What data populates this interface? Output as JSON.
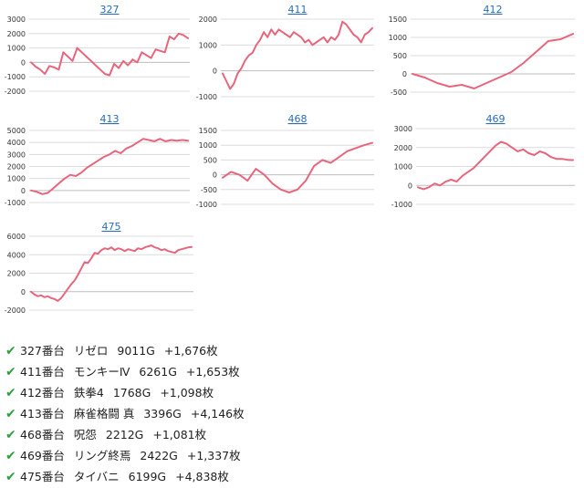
{
  "chart_data": [
    {
      "type": "line",
      "title": "327",
      "yticks": [
        "3000",
        "2000",
        "1000",
        "0",
        "-1000",
        "-2000"
      ],
      "ylim": [
        -2000,
        3000
      ],
      "x": [
        0,
        1,
        2,
        3,
        4,
        5,
        6,
        7,
        8,
        9,
        10,
        11,
        12,
        13,
        14,
        15,
        16,
        17,
        18,
        19,
        20,
        21,
        22,
        23,
        24,
        25,
        26,
        27,
        28,
        29,
        30,
        31,
        32,
        33,
        34
      ],
      "values": [
        0,
        -300,
        -500,
        -800,
        -250,
        -350,
        -500,
        700,
        400,
        100,
        1000,
        700,
        400,
        100,
        -200,
        -500,
        -800,
        -900,
        -100,
        -400,
        100,
        -200,
        200,
        0,
        700,
        500,
        300,
        900,
        800,
        700,
        1800,
        1600,
        2000,
        1900,
        1676
      ],
      "color": "#e8667d"
    },
    {
      "type": "line",
      "title": "411",
      "yticks": [
        "2000",
        "1000",
        "0",
        "-1000"
      ],
      "ylim": [
        -1000,
        2000
      ],
      "x": [
        0,
        1,
        2,
        3,
        4,
        5,
        6,
        7,
        8,
        9,
        10,
        11,
        12,
        13,
        14,
        15,
        16,
        17,
        18,
        19,
        20,
        21,
        22,
        23,
        24,
        25,
        26,
        27,
        28,
        29,
        30,
        31,
        32,
        33,
        34,
        35,
        36,
        37,
        38,
        39,
        40
      ],
      "values": [
        -100,
        -400,
        -700,
        -500,
        -100,
        100,
        400,
        600,
        700,
        1000,
        1200,
        1500,
        1300,
        1600,
        1400,
        1600,
        1500,
        1400,
        1300,
        1500,
        1400,
        1300,
        1100,
        1200,
        1000,
        1100,
        1200,
        1300,
        1100,
        1300,
        1200,
        1400,
        1900,
        1800,
        1600,
        1400,
        1300,
        1100,
        1400,
        1500,
        1653
      ],
      "color": "#e8667d"
    },
    {
      "type": "line",
      "title": "412",
      "yticks": [
        "1500",
        "1000",
        "500",
        "0",
        "-500"
      ],
      "ylim": [
        -500,
        1500
      ],
      "x": [
        0,
        1,
        2,
        3,
        4,
        5,
        6,
        7,
        8,
        9,
        10,
        11,
        12,
        13
      ],
      "values": [
        0,
        -100,
        -250,
        -350,
        -300,
        -400,
        -250,
        -100,
        50,
        300,
        600,
        900,
        950,
        1098
      ],
      "color": "#e8667d"
    },
    {
      "type": "line",
      "title": "413",
      "yticks": [
        "5000",
        "4000",
        "3000",
        "2000",
        "1000",
        "0",
        "-1000"
      ],
      "ylim": [
        -1000,
        5000
      ],
      "x": [
        0,
        1,
        2,
        3,
        4,
        5,
        6,
        7,
        8,
        9,
        10,
        11,
        12,
        13,
        14,
        15,
        16,
        17,
        18,
        19,
        20,
        21,
        22,
        23,
        24,
        25,
        26,
        27,
        28
      ],
      "values": [
        0,
        -100,
        -300,
        -200,
        200,
        600,
        1000,
        1300,
        1200,
        1500,
        1900,
        2200,
        2500,
        2800,
        3000,
        3300,
        3100,
        3500,
        3700,
        4000,
        4300,
        4200,
        4100,
        4300,
        4100,
        4200,
        4146,
        4200,
        4146
      ],
      "color": "#e8667d"
    },
    {
      "type": "line",
      "title": "468",
      "yticks": [
        "1500",
        "1000",
        "500",
        "0",
        "-500",
        "-1000"
      ],
      "ylim": [
        -1000,
        1500
      ],
      "x": [
        0,
        1,
        2,
        3,
        4,
        5,
        6,
        7,
        8,
        9,
        10,
        11,
        12,
        13,
        14,
        15,
        16,
        17,
        18
      ],
      "values": [
        -100,
        100,
        0,
        -200,
        200,
        0,
        -300,
        -500,
        -600,
        -500,
        -200,
        300,
        500,
        400,
        600,
        800,
        900,
        1000,
        1081
      ],
      "color": "#e8667d"
    },
    {
      "type": "line",
      "title": "469",
      "yticks": [
        "3000",
        "2000",
        "1000",
        "0",
        "-1000"
      ],
      "ylim": [
        -1000,
        3000
      ],
      "x": [
        0,
        1,
        2,
        3,
        4,
        5,
        6,
        7,
        8,
        9,
        10,
        11,
        12,
        13,
        14,
        15,
        16,
        17,
        18,
        19,
        20,
        21,
        22,
        23,
        24,
        25,
        26,
        27,
        28
      ],
      "values": [
        -100,
        -200,
        -100,
        100,
        0,
        200,
        300,
        200,
        500,
        700,
        900,
        1200,
        1500,
        1800,
        2100,
        2300,
        2200,
        2000,
        1800,
        1900,
        1700,
        1600,
        1800,
        1700,
        1500,
        1400,
        1400,
        1350,
        1337
      ],
      "color": "#e8667d"
    },
    {
      "type": "line",
      "title": "475",
      "yticks": [
        "6000",
        "4000",
        "2000",
        "0",
        "-2000"
      ],
      "ylim": [
        -2000,
        6000
      ],
      "x": [
        0,
        1,
        2,
        3,
        4,
        5,
        6,
        7,
        8,
        9,
        10,
        11,
        12,
        13,
        14,
        15,
        16,
        17,
        18,
        19,
        20,
        21,
        22,
        23,
        24,
        25,
        26,
        27,
        28,
        29,
        30,
        31,
        32,
        33,
        34,
        35,
        36,
        37,
        38,
        39,
        40,
        41,
        42,
        43,
        44,
        45,
        46,
        47,
        48
      ],
      "values": [
        0,
        -300,
        -500,
        -400,
        -600,
        -500,
        -700,
        -800,
        -1000,
        -700,
        -200,
        300,
        800,
        1200,
        1800,
        2500,
        3200,
        3100,
        3600,
        4200,
        4100,
        4500,
        4700,
        4600,
        4800,
        4500,
        4700,
        4600,
        4400,
        4600,
        4500,
        4400,
        4700,
        4600,
        4800,
        4900,
        5000,
        4800,
        4700,
        4500,
        4600,
        4400,
        4300,
        4200,
        4500,
        4600,
        4700,
        4800,
        4838
      ],
      "color": "#e8667d"
    }
  ],
  "summary": [
    {
      "machine": "327番台",
      "name": "リゼロ",
      "games": "9011G",
      "result": "+1,676枚"
    },
    {
      "machine": "411番台",
      "name": "モンキーⅣ",
      "games": "6261G",
      "result": "+1,653枚"
    },
    {
      "machine": "412番台",
      "name": "鉄拳4",
      "games": "1768G",
      "result": "+1,098枚"
    },
    {
      "machine": "413番台",
      "name": "麻雀格闘 真",
      "games": "3396G",
      "result": "+4,146枚"
    },
    {
      "machine": "468番台",
      "name": "呪怨",
      "games": "2212G",
      "result": "+1,081枚"
    },
    {
      "machine": "469番台",
      "name": "リング終焉",
      "games": "2422G",
      "result": "+1,337枚"
    },
    {
      "machine": "475番台",
      "name": "タイバニ",
      "games": "6199G",
      "result": "+4,838枚"
    }
  ]
}
